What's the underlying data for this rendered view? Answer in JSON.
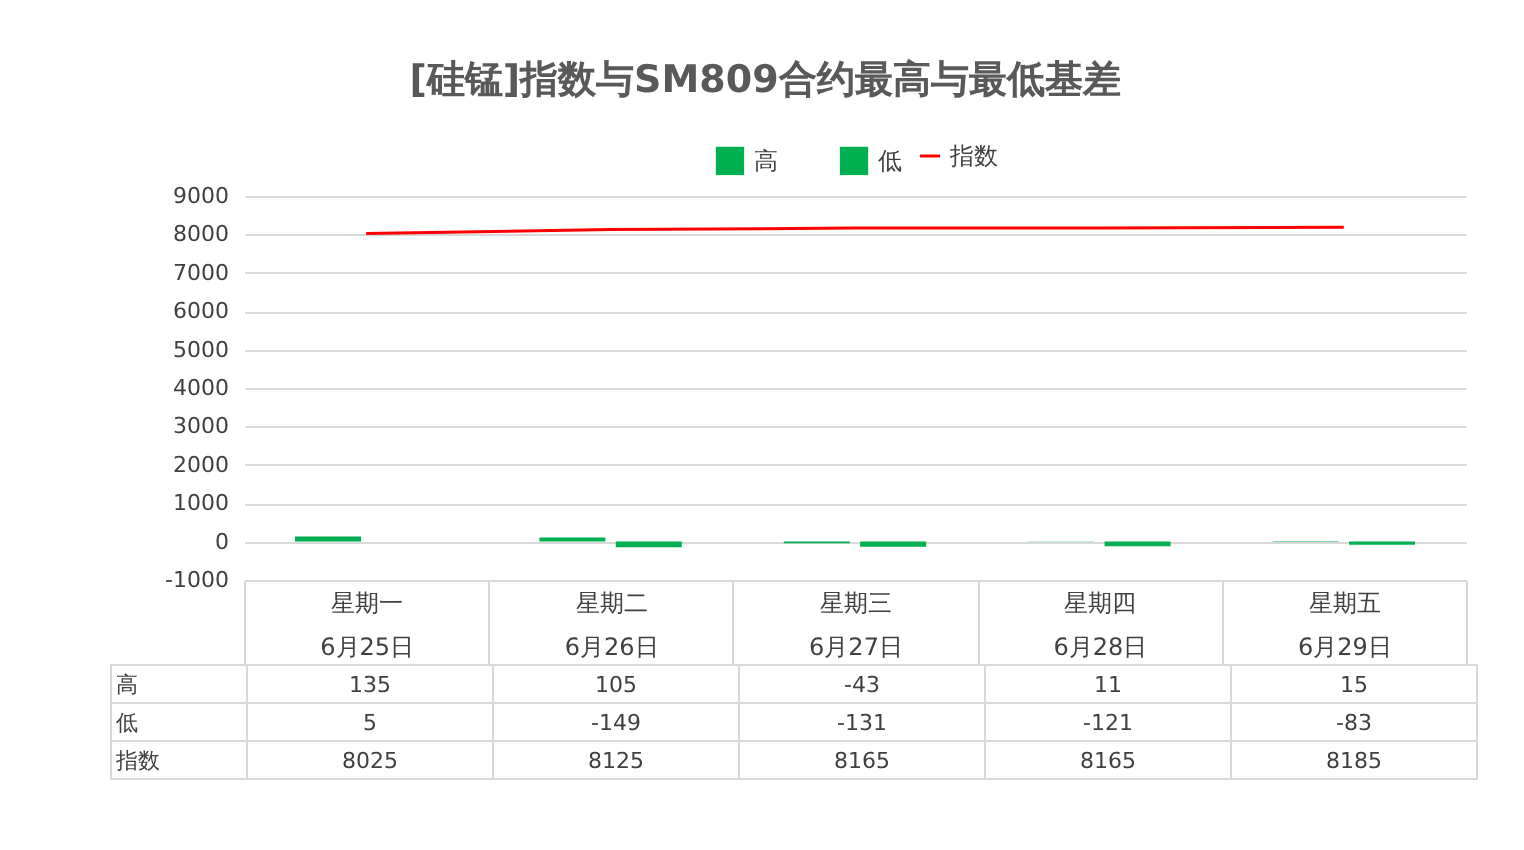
{
  "chart_data": {
    "type": "bar",
    "title": "[硅锰]指数与SM809合约最高与最低基差",
    "categories": [
      "星期一\n6月25日",
      "星期二\n6月26日",
      "星期三\n6月27日",
      "星期四\n6月28日",
      "星期五\n6月29日"
    ],
    "series": [
      {
        "name": "高",
        "color": "#00b050",
        "values": [
          135,
          105,
          -43,
          11,
          15
        ]
      },
      {
        "name": "低",
        "color": "#00b050",
        "values": [
          5,
          -149,
          -131,
          -121,
          -83
        ]
      },
      {
        "name": "指数",
        "type": "line",
        "color": "#ff0000",
        "values": [
          8025,
          8125,
          8165,
          8165,
          8185
        ]
      }
    ],
    "ylim": [
      -1000,
      9000
    ],
    "yticks": [
      -1000,
      0,
      1000,
      2000,
      3000,
      4000,
      5000,
      6000,
      7000,
      8000,
      9000
    ],
    "grid": "y",
    "legend": "top",
    "data_labels": true
  }
}
